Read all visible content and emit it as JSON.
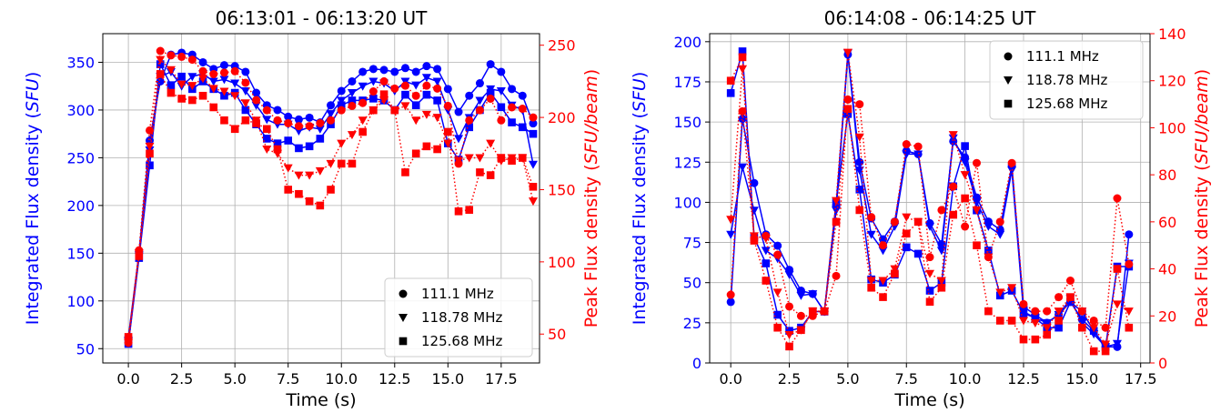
{
  "chart_data": [
    {
      "type": "line",
      "title": "06:13:01 - 06:13:20 UT",
      "xlabel": "Time (s)",
      "ylabel_left": "Integrated Flux density (",
      "ylabel_left_unit": "SFU",
      "ylabel_left_end": ")",
      "ylabel_right": "Peak Flux density (",
      "ylabel_right_unit": "SFU/beam",
      "ylabel_right_end": ")",
      "xlim": [
        -1.2,
        19.3
      ],
      "ylim_left": [
        35,
        380
      ],
      "ylim_right": [
        30,
        258
      ],
      "xticks": [
        "0.0",
        "2.5",
        "5.0",
        "7.5",
        "10.0",
        "12.5",
        "15.0",
        "17.5"
      ],
      "xtick_values": [
        0,
        2.5,
        5,
        7.5,
        10,
        12.5,
        15,
        17.5
      ],
      "yticks_left": [
        "50",
        "100",
        "150",
        "200",
        "250",
        "300",
        "350"
      ],
      "ytick_values_left": [
        50,
        100,
        150,
        200,
        250,
        300,
        350
      ],
      "yticks_right": [
        "50",
        "100",
        "150",
        "200",
        "250"
      ],
      "ytick_values_right": [
        50,
        100,
        150,
        200,
        250
      ],
      "legend": [
        "111.1 MHz",
        "118.78 MHz",
        "125.68 MHz"
      ],
      "legend_loc": "lower-right",
      "x": [
        0,
        0.5,
        1,
        1.5,
        2,
        2.5,
        3,
        3.5,
        4,
        4.5,
        5,
        5.5,
        6,
        6.5,
        7,
        7.5,
        8,
        8.5,
        9,
        9.5,
        10,
        10.5,
        11,
        11.5,
        12,
        12.5,
        13,
        13.5,
        14,
        14.5,
        15,
        15.5,
        16,
        16.5,
        17,
        17.5,
        18,
        18.5,
        19
      ],
      "series": [
        {
          "name": "111.1 MHz integrated",
          "axis": "left",
          "color": "#0000ff",
          "style": "solid",
          "marker": "circle",
          "values": [
            62,
            150,
            268,
            330,
            358,
            360,
            358,
            350,
            343,
            347,
            346,
            340,
            318,
            305,
            300,
            293,
            290,
            292,
            287,
            305,
            320,
            330,
            340,
            343,
            342,
            340,
            344,
            340,
            346,
            343,
            322,
            298,
            315,
            328,
            348,
            340,
            322,
            315,
            286
          ]
        },
        {
          "name": "118.78 MHz integrated",
          "axis": "left",
          "color": "#0000ff",
          "style": "solid",
          "marker": "triangle",
          "values": [
            58,
            148,
            258,
            335,
            340,
            325,
            335,
            338,
            330,
            332,
            328,
            320,
            305,
            290,
            285,
            285,
            278,
            282,
            280,
            296,
            310,
            318,
            325,
            330,
            328,
            320,
            330,
            326,
            334,
            330,
            300,
            270,
            292,
            310,
            322,
            320,
            305,
            300,
            243
          ]
        },
        {
          "name": "125.68 MHz integrated",
          "axis": "left",
          "color": "#0000ff",
          "style": "solid",
          "marker": "square",
          "values": [
            55,
            145,
            242,
            348,
            326,
            335,
            322,
            330,
            322,
            315,
            318,
            300,
            285,
            270,
            265,
            268,
            260,
            262,
            270,
            285,
            305,
            310,
            310,
            312,
            310,
            300,
            316,
            305,
            316,
            310,
            265,
            248,
            282,
            300,
            318,
            303,
            287,
            282,
            275
          ]
        },
        {
          "name": "111.1 MHz peak",
          "axis": "right",
          "color": "#ff0000",
          "style": "dotted",
          "marker": "circle",
          "values": [
            44,
            108,
            191,
            246,
            243,
            242,
            240,
            232,
            230,
            231,
            232,
            224,
            212,
            205,
            198,
            196,
            194,
            194,
            196,
            198,
            205,
            208,
            210,
            218,
            225,
            220,
            222,
            215,
            222,
            220,
            208,
            168,
            198,
            205,
            213,
            198,
            207,
            206,
            200
          ]
        },
        {
          "name": "118.78 MHz peak",
          "axis": "right",
          "color": "#ff0000",
          "style": "dotted",
          "marker": "triangle",
          "values": [
            44,
            106,
            180,
            240,
            233,
            223,
            222,
            227,
            220,
            218,
            215,
            210,
            198,
            178,
            175,
            165,
            160,
            160,
            163,
            168,
            182,
            188,
            198,
            205,
            212,
            205,
            208,
            198,
            202,
            200,
            182,
            170,
            172,
            172,
            182,
            170,
            172,
            172,
            142
          ]
        },
        {
          "name": "125.68 MHz peak",
          "axis": "right",
          "color": "#ff0000",
          "style": "dotted",
          "marker": "square",
          "values": [
            48,
            104,
            175,
            230,
            217,
            213,
            212,
            215,
            207,
            198,
            192,
            198,
            196,
            192,
            178,
            150,
            147,
            142,
            139,
            150,
            168,
            168,
            190,
            205,
            216,
            205,
            162,
            175,
            180,
            178,
            190,
            135,
            136,
            162,
            160,
            172,
            170,
            172,
            152
          ]
        }
      ]
    },
    {
      "type": "line",
      "title": "06:14:08 - 06:14:25 UT",
      "xlabel": "Time (s)",
      "ylabel_left": "Integrated Flux density (",
      "ylabel_left_unit": "SFU",
      "ylabel_left_end": ")",
      "ylabel_right": "Peak Flux density (",
      "ylabel_right_unit": "SFU/beam",
      "ylabel_right_end": ")",
      "xlim": [
        -0.9,
        17.9
      ],
      "ylim_left": [
        0,
        205
      ],
      "ylim_right": [
        0,
        140
      ],
      "xticks": [
        "0.0",
        "2.5",
        "5.0",
        "7.5",
        "10.0",
        "12.5",
        "15.0",
        "17.5"
      ],
      "xtick_values": [
        0,
        2.5,
        5,
        7.5,
        10,
        12.5,
        15,
        17.5
      ],
      "yticks_left": [
        "0",
        "25",
        "50",
        "75",
        "100",
        "125",
        "150",
        "175",
        "200"
      ],
      "ytick_values_left": [
        0,
        25,
        50,
        75,
        100,
        125,
        150,
        175,
        200
      ],
      "yticks_right": [
        "0",
        "20",
        "40",
        "60",
        "80",
        "100",
        "120",
        "140"
      ],
      "ytick_values_right": [
        0,
        20,
        40,
        60,
        80,
        100,
        120,
        140
      ],
      "legend": [
        "111.1 MHz",
        "118.78 MHz",
        "125.68 MHz"
      ],
      "legend_loc": "upper-right",
      "x": [
        0,
        0.5,
        1,
        1.5,
        2,
        2.5,
        3,
        3.5,
        4,
        4.5,
        5,
        5.5,
        6,
        6.5,
        7,
        7.5,
        8,
        8.5,
        9,
        9.5,
        10,
        10.5,
        11,
        11.5,
        12,
        12.5,
        13,
        13.5,
        14,
        14.5,
        15,
        15.5,
        16,
        16.5,
        17
      ],
      "series": [
        {
          "name": "111.1 MHz integrated",
          "axis": "left",
          "color": "#0000ff",
          "style": "solid",
          "marker": "circle",
          "values": [
            38,
            152,
            112,
            80,
            73,
            58,
            45,
            43,
            32,
            98,
            192,
            125,
            90,
            77,
            88,
            132,
            130,
            87,
            74,
            138,
            128,
            103,
            88,
            83,
            123,
            35,
            30,
            25,
            30,
            38,
            27,
            20,
            10,
            10,
            80
          ]
        },
        {
          "name": "118.78 MHz integrated",
          "axis": "left",
          "color": "#0000ff",
          "style": "solid",
          "marker": "triangle",
          "values": [
            80,
            122,
            95,
            70,
            65,
            55,
            42,
            43,
            32,
            95,
            193,
            120,
            80,
            70,
            85,
            130,
            130,
            85,
            70,
            140,
            125,
            100,
            85,
            80,
            120,
            32,
            28,
            25,
            30,
            40,
            25,
            18,
            10,
            12,
            62
          ]
        },
        {
          "name": "125.68 MHz integrated",
          "axis": "left",
          "color": "#0000ff",
          "style": "solid",
          "marker": "square",
          "values": [
            168,
            194,
            78,
            62,
            30,
            20,
            22,
            32,
            32,
            100,
            155,
            108,
            52,
            50,
            55,
            72,
            68,
            45,
            50,
            110,
            135,
            95,
            70,
            42,
            45,
            31,
            28,
            22,
            22,
            38,
            32,
            20,
            10,
            60,
            60
          ]
        },
        {
          "name": "111.1 MHz peak",
          "axis": "right",
          "color": "#ff0000",
          "style": "dotted",
          "marker": "circle",
          "values": [
            29,
            107,
            53,
            54,
            46,
            24,
            20,
            20,
            22,
            37,
            112,
            110,
            62,
            50,
            60,
            93,
            92,
            45,
            65,
            75,
            58,
            85,
            45,
            60,
            85,
            25,
            22,
            22,
            28,
            35,
            22,
            18,
            15,
            70,
            42
          ]
        },
        {
          "name": "118.78 MHz peak",
          "axis": "right",
          "color": "#ff0000",
          "style": "dotted",
          "marker": "triangle",
          "values": [
            61,
            125,
            54,
            53,
            30,
            12,
            14,
            22,
            22,
            69,
            132,
            96,
            35,
            35,
            40,
            62,
            60,
            38,
            35,
            97,
            80,
            65,
            45,
            30,
            32,
            18,
            17,
            15,
            22,
            28,
            22,
            15,
            8,
            25,
            22
          ]
        },
        {
          "name": "125.68 MHz peak",
          "axis": "right",
          "color": "#ff0000",
          "style": "dotted",
          "marker": "square",
          "values": [
            120,
            130,
            52,
            35,
            15,
            7,
            14,
            22,
            22,
            60,
            108,
            65,
            32,
            28,
            38,
            55,
            60,
            26,
            32,
            63,
            70,
            50,
            22,
            18,
            18,
            10,
            10,
            12,
            18,
            28,
            15,
            5,
            5,
            40,
            15
          ]
        }
      ]
    }
  ]
}
